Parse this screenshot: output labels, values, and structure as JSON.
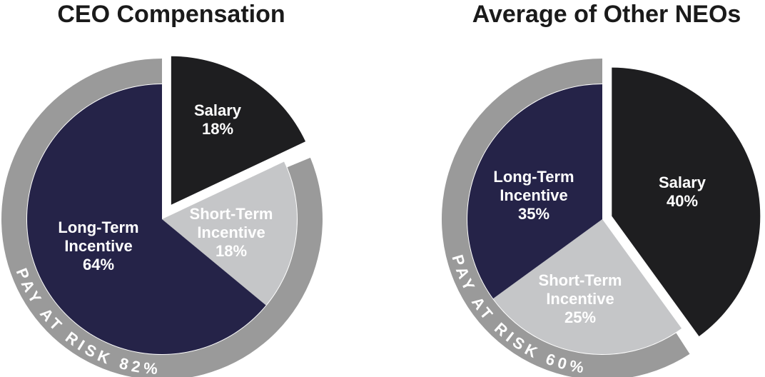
{
  "figure": {
    "background": "#ffffff",
    "title_color": "#1a1a1a",
    "label_text_color": "#ffffff",
    "ring_text_color": "#ffffff"
  },
  "chart_data": [
    {
      "type": "pie",
      "title": "CEO Compensation",
      "start_angle_deg": 0,
      "clockwise": true,
      "exploded_slice": "Salary",
      "slices": [
        {
          "label": "Salary",
          "pct": 18,
          "label_lines": [
            "Salary",
            "18%"
          ],
          "color": "#1e1e20"
        },
        {
          "label": "Short-Term Incentive",
          "pct": 18,
          "label_lines": [
            "Short-Term",
            "Incentive",
            "18%"
          ],
          "color": "#c5c6c8"
        },
        {
          "label": "Long-Term Incentive",
          "pct": 64,
          "label_lines": [
            "Long-Term",
            "Incentive",
            "64%"
          ],
          "color": "#252348"
        }
      ],
      "annotation": "PAY AT RISK 82%",
      "pay_at_risk_pct": 82,
      "ring_color": "#9a9a9a"
    },
    {
      "type": "pie",
      "title": "Average of Other NEOs",
      "start_angle_deg": 0,
      "clockwise": true,
      "exploded_slice": "Salary",
      "slices": [
        {
          "label": "Salary",
          "pct": 40,
          "label_lines": [
            "Salary",
            "40%"
          ],
          "color": "#1e1e20"
        },
        {
          "label": "Short-Term Incentive",
          "pct": 25,
          "label_lines": [
            "Short-Term",
            "Incentive",
            "25%"
          ],
          "color": "#c5c6c8"
        },
        {
          "label": "Long-Term Incentive",
          "pct": 35,
          "label_lines": [
            "Long-Term",
            "Incentive",
            "35%"
          ],
          "color": "#252348"
        }
      ],
      "annotation": "PAY AT RISK 60%",
      "pay_at_risk_pct": 60,
      "ring_color": "#9a9a9a"
    }
  ]
}
